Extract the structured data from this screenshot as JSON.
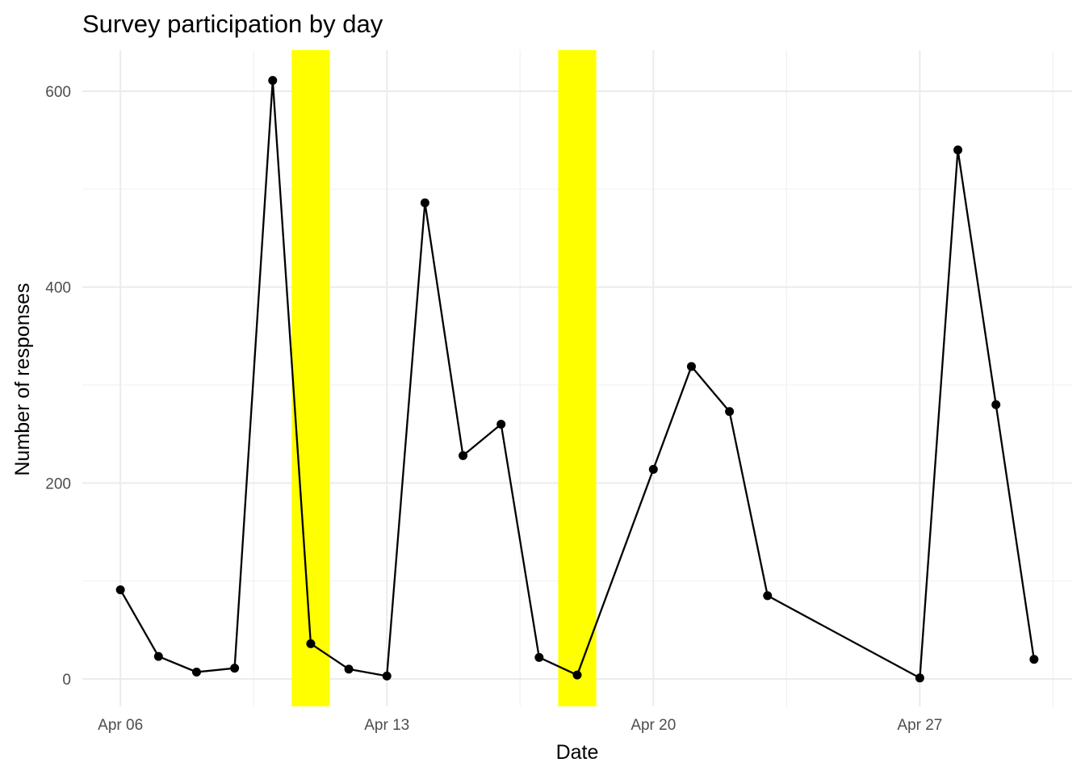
{
  "chart_data": {
    "type": "line",
    "title": "Survey participation by day",
    "xlabel": "Date",
    "ylabel": "Number of responses",
    "x_ticks": [
      "Apr 06",
      "Apr 13",
      "Apr 20",
      "Apr 27"
    ],
    "x_tick_dates": [
      "2020-04-06",
      "2020-04-13",
      "2020-04-20",
      "2020-04-27"
    ],
    "y_ticks": [
      0,
      200,
      400,
      600
    ],
    "xlim": [
      "2020-04-05",
      "2020-05-01"
    ],
    "ylim": [
      -28,
      642
    ],
    "grid": true,
    "legend": "none",
    "colors": {
      "line": "#000000",
      "point": "#000000",
      "highlight": "#ffff00",
      "grid_major": "#ebebeb",
      "grid_minor": "#f2f2f2"
    },
    "highlight_ranges": [
      {
        "start": "2020-04-10T12:00",
        "end": "2020-04-11T12:00"
      },
      {
        "start": "2020-04-17T12:00",
        "end": "2020-04-18T12:00"
      }
    ],
    "series": [
      {
        "points": [
          {
            "date": "2020-04-06",
            "value": 91
          },
          {
            "date": "2020-04-07",
            "value": 23
          },
          {
            "date": "2020-04-08",
            "value": 7
          },
          {
            "date": "2020-04-09",
            "value": 11
          },
          {
            "date": "2020-04-10",
            "value": 611
          },
          {
            "date": "2020-04-11",
            "value": 36
          },
          {
            "date": "2020-04-12",
            "value": 10
          },
          {
            "date": "2020-04-13",
            "value": 3
          },
          {
            "date": "2020-04-14",
            "value": 486
          },
          {
            "date": "2020-04-15",
            "value": 228
          },
          {
            "date": "2020-04-16",
            "value": 260
          },
          {
            "date": "2020-04-17",
            "value": 22
          },
          {
            "date": "2020-04-18",
            "value": 4
          },
          {
            "date": "2020-04-20",
            "value": 214
          },
          {
            "date": "2020-04-21",
            "value": 319
          },
          {
            "date": "2020-04-22",
            "value": 273
          },
          {
            "date": "2020-04-23",
            "value": 85
          },
          {
            "date": "2020-04-27",
            "value": 1
          },
          {
            "date": "2020-04-28",
            "value": 540
          },
          {
            "date": "2020-04-29",
            "value": 280
          },
          {
            "date": "2020-04-30",
            "value": 20
          }
        ]
      }
    ]
  }
}
